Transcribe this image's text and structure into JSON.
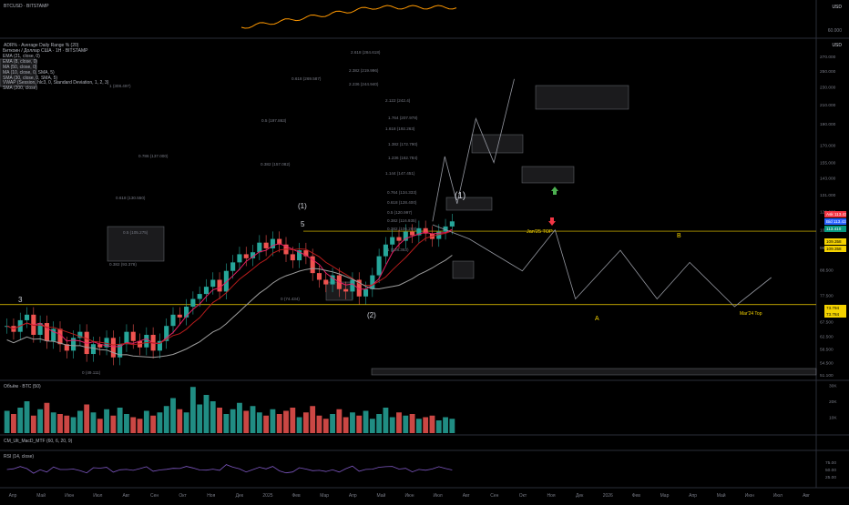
{
  "header": {
    "symbol_top": "BTCUSD · BITSTAMP",
    "currency": "USD"
  },
  "adr_panel": {
    "title": "ADR% - Average Daily Range % (20)",
    "axis_label": "60.000"
  },
  "main_legend": [
    "Биткоин / Доллар США · 1Н · BITSTAMP",
    "EMA (21, close, 0)",
    "EMA (8, close, 0)",
    "MA (50, close, 0)",
    "MA (10, close, 0, SMA, 5)",
    "SMA (30, close, 0, SMA, 5)",
    "VWAP (Session, hlc3, 0, Standard Deviation, 1, 2, 3)",
    "SMA (200, close)"
  ],
  "volume_panel": {
    "title": "Объём · BTC (50)",
    "ticks": [
      "30K",
      "20K",
      "10K"
    ]
  },
  "macd_panel": {
    "title": "CM_Ult_MacD_MTF (60, 6, 20, 9)"
  },
  "rsi_panel": {
    "title": "RSI (14, close)",
    "ticks": [
      "75.00",
      "50.00",
      "25.00"
    ]
  },
  "price_axis": [
    "270.000",
    "250.000",
    "230.000",
    "210.000",
    "190.000",
    "170.000",
    "155.000",
    "143.000",
    "131.000",
    "120.000",
    "109.000",
    "99.500",
    "88.500",
    "77.500",
    "67.500",
    "62.500",
    "58.500",
    "54.500",
    "51.100"
  ],
  "price_tags": [
    {
      "label": "Ask",
      "value": "113.432",
      "color": "#f23645",
      "text": "#ffffff"
    },
    {
      "label": "Bid",
      "value": "113.432",
      "color": "#2962ff",
      "text": "#ffffff"
    },
    {
      "label": "",
      "value": "113.410",
      "color": "#089981",
      "text": "#ffffff"
    },
    {
      "label": "",
      "value": "109.358",
      "color": "#f5d300",
      "text": "#000000"
    },
    {
      "label": "",
      "value": "109.358",
      "color": "#f5d300",
      "text": "#000000"
    },
    {
      "label": "",
      "value": "73.794",
      "color": "#f5d300",
      "text": "#000000"
    },
    {
      "label": "",
      "value": "73.784",
      "color": "#f5d300",
      "text": "#000000"
    }
  ],
  "annotations": {
    "wave3": "3",
    "wave5": "5",
    "wave1_left": "(1)",
    "wave1_right": "(1)",
    "wave2": "(2)",
    "waveA": "A",
    "waveB": "B",
    "jan_top": "Jan'25 TOP",
    "mar_top": "Mar'24 Top"
  },
  "fib_labels": [
    "2.618 (284.618)",
    "2.382 (219.996)",
    "0.618 (269.587)",
    "2.236 (244.940)",
    "2.122 (242.4)",
    "1.764 (207.978)",
    "0.5 (197.863)",
    "1.618 (192.263)",
    "1.382 (172.790)",
    "1.236 (162.784)",
    "0.382 (157.082)",
    "1.144 (147.451)",
    "0.786 (137.000)",
    "0.764 (134.333)",
    "0.618 (128.400)",
    "0.618 (130.550)",
    "0.5 (120.997)",
    "0.382 (116.935)",
    "1 (108.363)",
    "0.5 (105.275)",
    "0.382 (106.268)",
    "0.382 (93.378)",
    "0 (74.434)",
    "0 (49.111)",
    "1 (308.497)"
  ],
  "time_axis": [
    "Апр",
    "Май",
    "Июн",
    "Июл",
    "Авг",
    "Сен",
    "Окт",
    "Ноя",
    "Дек",
    "2025",
    "Фев",
    "Мар",
    "Апр",
    "Май",
    "Июн",
    "Июл",
    "Авг",
    "Сен",
    "Окт",
    "Ноя",
    "Дек",
    "2026",
    "Фев",
    "Мар",
    "Апр",
    "Май",
    "Июн",
    "Июл",
    "Авг"
  ],
  "chart_data": {
    "type": "candlestick",
    "title": "Биткоин / Доллар США · 1Н · BITSTAMP",
    "ylim": [
      51.1,
      270.0
    ],
    "price_closes": [
      66,
      64,
      68,
      70,
      63,
      67,
      61,
      65,
      60,
      58,
      62,
      64,
      57,
      60,
      59,
      62,
      56,
      60,
      64,
      61,
      59,
      63,
      58,
      61,
      66,
      70,
      69,
      73,
      76,
      78,
      81,
      84,
      79,
      88,
      92,
      96,
      94,
      97,
      102,
      99,
      104,
      101,
      96,
      93,
      98,
      95,
      87,
      84,
      82,
      86,
      80,
      79,
      84,
      77,
      80,
      86,
      95,
      101,
      105,
      103,
      108,
      106,
      110,
      107,
      104,
      108,
      111,
      114
    ],
    "volume_values": [
      14,
      12,
      16,
      20,
      11,
      15,
      19,
      13,
      12,
      11,
      10,
      14,
      18,
      13,
      9,
      15,
      11,
      16,
      12,
      10,
      9,
      14,
      11,
      13,
      17,
      22,
      15,
      13,
      29,
      18,
      24,
      20,
      16,
      12,
      15,
      19,
      14,
      17,
      13,
      11,
      15,
      12,
      14,
      16,
      10,
      13,
      17,
      11,
      9,
      12,
      15,
      10,
      13,
      11,
      14,
      9,
      12,
      16,
      10,
      13,
      11,
      12,
      9,
      10,
      11,
      8,
      10,
      9
    ],
    "projection_path": [
      {
        "x": 0.53,
        "y": 114.0
      },
      {
        "x": 0.545,
        "y": 160.0
      },
      {
        "x": 0.56,
        "y": 125.0
      },
      {
        "x": 0.583,
        "y": 195.0
      },
      {
        "x": 0.605,
        "y": 155.0
      },
      {
        "x": 0.63,
        "y": 240.0
      }
    ],
    "scenario_path": [
      {
        "x": 0.53,
        "y": 112.0
      },
      {
        "x": 0.575,
        "y": 104.0
      },
      {
        "x": 0.64,
        "y": 88.0
      },
      {
        "x": 0.68,
        "y": 109.0
      },
      {
        "x": 0.705,
        "y": 76.0
      },
      {
        "x": 0.76,
        "y": 98.0
      },
      {
        "x": 0.805,
        "y": 76.0
      },
      {
        "x": 0.845,
        "y": 92.0
      },
      {
        "x": 0.9,
        "y": 73.0
      },
      {
        "x": 0.945,
        "y": 85.0
      }
    ]
  }
}
